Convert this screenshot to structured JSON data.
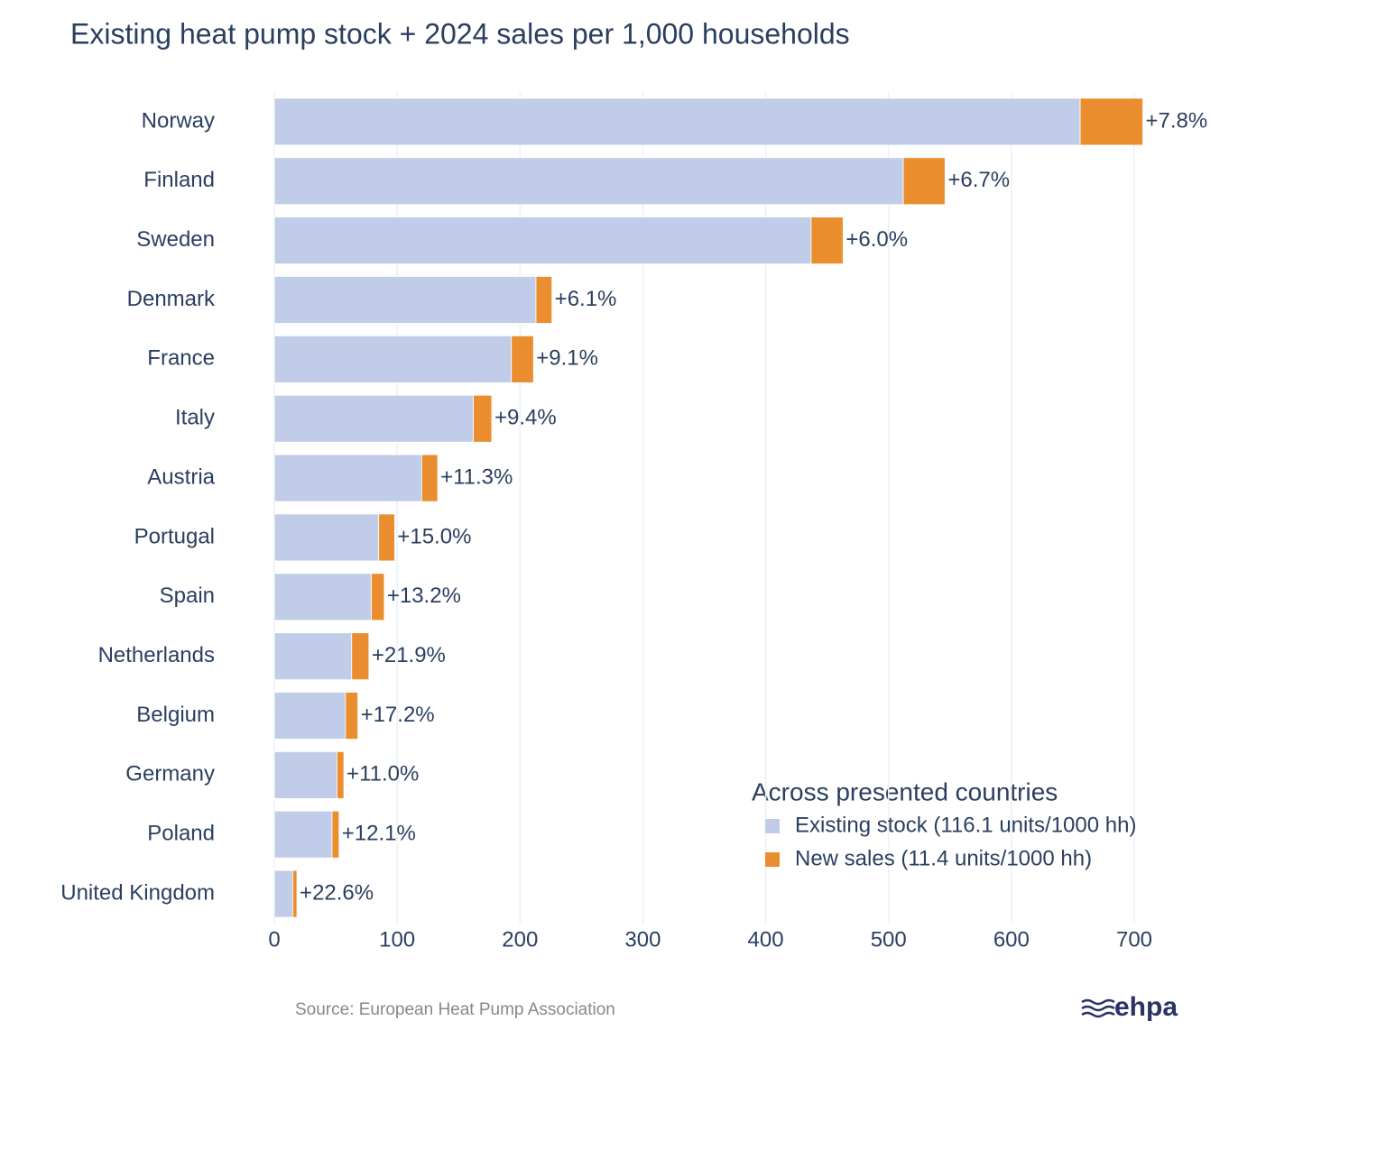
{
  "chart_data": {
    "type": "stacked-barh",
    "title": "Existing heat pump stock + 2024 sales per 1,000 households",
    "categories": [
      "Norway",
      "Finland",
      "Sweden",
      "Denmark",
      "France",
      "Italy",
      "Austria",
      "Portugal",
      "Spain",
      "Netherlands",
      "Belgium",
      "Germany",
      "Poland",
      "United Kingdom"
    ],
    "series": [
      {
        "name": "Existing stock (116.1 units/1000 hh)",
        "color": "#c1cde8",
        "values": [
          656,
          512,
          437,
          213,
          193,
          162,
          120,
          85,
          79,
          63,
          58,
          51,
          47,
          15
        ]
      },
      {
        "name": "New sales (11.4 units/1000 hh)",
        "color": "#ea8d2f",
        "values": [
          51,
          34,
          26,
          13,
          18,
          15,
          13,
          13,
          10.5,
          14,
          10,
          5.6,
          5.7,
          3.4
        ]
      }
    ],
    "growth_labels": [
      "+7.8%",
      "+6.7%",
      "+6.0%",
      "+6.1%",
      "+9.1%",
      "+9.4%",
      "+11.3%",
      "+15.0%",
      "+13.2%",
      "+21.9%",
      "+17.2%",
      "+11.0%",
      "+12.1%",
      "+22.6%"
    ],
    "legend_title": "Across presented countries",
    "xlim": [
      0,
      700
    ],
    "xticks": [
      0,
      100,
      200,
      300,
      400,
      500,
      600,
      700
    ],
    "grid": true,
    "source": "Source: European Heat Pump Association",
    "logo": "ehpa"
  }
}
